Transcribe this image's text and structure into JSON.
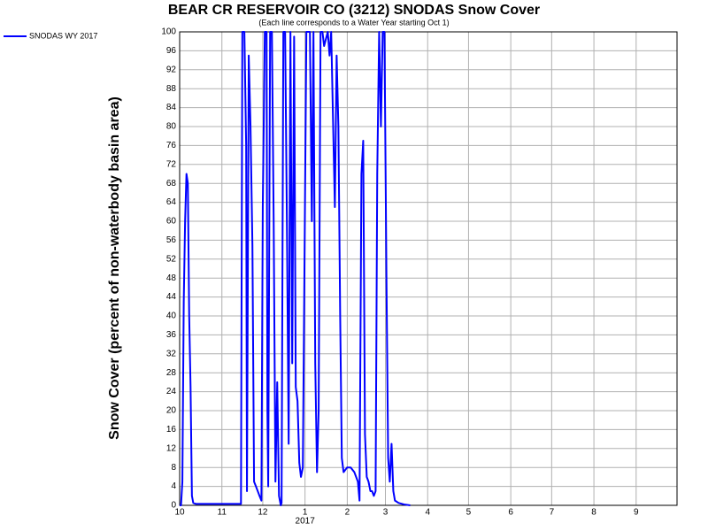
{
  "chart_data": {
    "type": "line",
    "title": "BEAR CR RESERVOIR CO (3212) SNODAS Snow Cover",
    "subtitle": "(Each line corresponds to a Water Year starting Oct 1)",
    "y_label": "Snow Cover (percent of non-waterbody basin area)",
    "year_label": "2017",
    "x": [
      0,
      1,
      2,
      3,
      4,
      5,
      6,
      7,
      8,
      9,
      10,
      12,
      45,
      46,
      47.5,
      48.8,
      49.4,
      50.7,
      52,
      53.4,
      54.6,
      56,
      57.3,
      58.6,
      60,
      61,
      62.5,
      63.8,
      64.4,
      65,
      66.4,
      67.7,
      69,
      70.3,
      71.6,
      72.9,
      74.2,
      74.8,
      76.1,
      77.4,
      78.7,
      80,
      81.3,
      82.6,
      84,
      85.2,
      86.5,
      87.8,
      89,
      90.4,
      93,
      95.6,
      97,
      98.2,
      99.5,
      100.8,
      102,
      103.4,
      104.8,
      106,
      108.7,
      110,
      111.2,
      113.9,
      115.2,
      116.5,
      117.8,
      119,
      120.3,
      122.9,
      125.5,
      128.2,
      130.8,
      132,
      133.4,
      134.7,
      136,
      137.3,
      138.6,
      140,
      141.2,
      142.5,
      143.8,
      145,
      146.4,
      147.7,
      149,
      150.3,
      151.7,
      153,
      154.2,
      155.5,
      156.8,
      158,
      160.7,
      164.6,
      169.2
    ],
    "series": [
      {
        "name": "SNODAS WY 2017",
        "color": "#0000ff",
        "values": [
          0,
          0,
          5,
          43,
          60,
          70,
          68,
          40,
          25,
          2,
          0.5,
          0.3,
          0.3,
          100,
          100,
          76,
          3,
          95,
          80,
          55,
          5,
          4,
          3,
          2,
          1,
          63,
          100,
          100,
          20,
          4,
          100,
          100,
          60,
          5,
          26,
          2,
          0,
          0.5,
          100,
          100,
          60,
          13,
          100,
          30,
          99,
          25,
          22,
          9,
          6,
          8,
          100,
          100,
          60,
          100,
          30,
          7,
          20,
          100,
          100,
          97,
          100,
          95,
          100,
          63,
          95,
          80,
          40,
          10,
          7,
          8,
          8,
          7,
          5,
          1,
          70,
          77,
          15,
          6,
          5,
          3,
          3,
          2,
          3,
          70,
          100,
          80,
          100,
          100,
          50,
          10,
          5,
          13,
          3,
          1,
          0.5,
          0.2,
          0
        ]
      }
    ],
    "xlim": [
      0,
      365
    ],
    "xticks": [
      {
        "value": 0,
        "label": "10"
      },
      {
        "value": 31,
        "label": "11"
      },
      {
        "value": 61,
        "label": "12"
      },
      {
        "value": 92,
        "label": "1"
      },
      {
        "value": 123,
        "label": "2"
      },
      {
        "value": 151,
        "label": "3"
      },
      {
        "value": 182,
        "label": "4"
      },
      {
        "value": 212,
        "label": "5"
      },
      {
        "value": 243,
        "label": "6"
      },
      {
        "value": 273,
        "label": "7"
      },
      {
        "value": 304,
        "label": "8"
      },
      {
        "value": 335,
        "label": "9"
      }
    ],
    "ylim": [
      0,
      100
    ],
    "yticks": [
      0,
      4,
      8,
      12,
      16,
      20,
      24,
      28,
      32,
      36,
      40,
      44,
      48,
      52,
      56,
      60,
      64,
      68,
      72,
      76,
      80,
      84,
      88,
      92,
      96,
      100
    ],
    "grid": true
  }
}
